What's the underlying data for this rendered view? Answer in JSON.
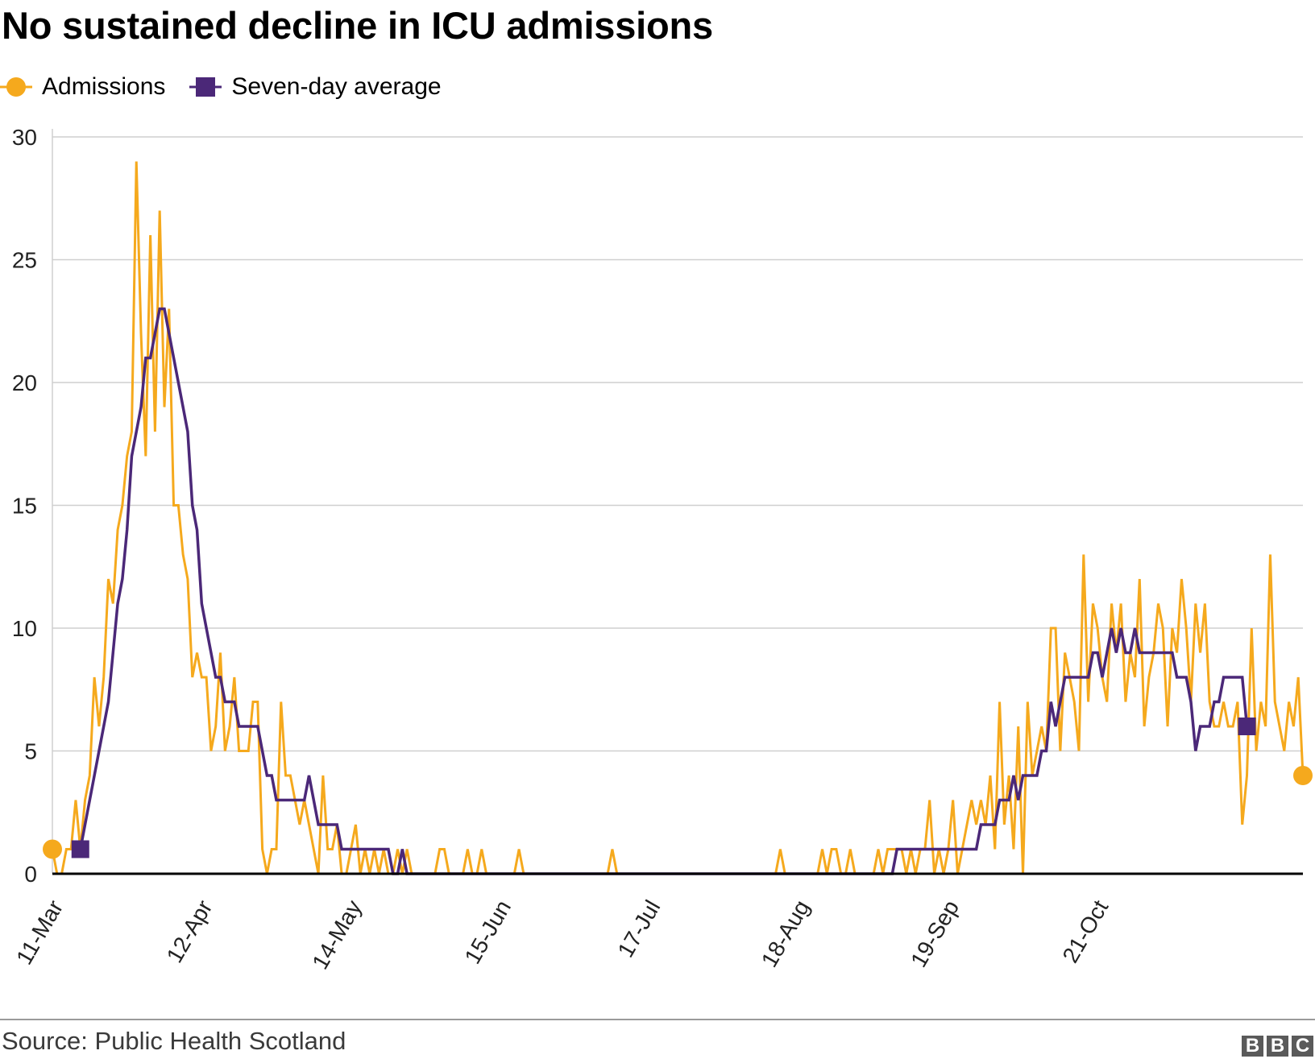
{
  "header": {
    "title": "No sustained decline in ICU admissions"
  },
  "legend": [
    {
      "label": "Admissions",
      "marker": "circle",
      "color": "#f5a91d"
    },
    {
      "label": "Seven-day average",
      "marker": "square",
      "color": "#4b2878"
    }
  ],
  "footer": {
    "source": "Source: Public Health Scotland",
    "logo": [
      "B",
      "B",
      "C"
    ]
  },
  "chart_data": {
    "type": "line",
    "title": "No sustained decline in ICU admissions",
    "xlabel": "",
    "ylabel": "",
    "ylim": [
      0,
      30
    ],
    "yticks": [
      0,
      5,
      10,
      15,
      20,
      25,
      30
    ],
    "start_date": "11-Mar",
    "xtick_labels": [
      "11-Mar",
      "12-Apr",
      "14-May",
      "15-Jun",
      "17-Jul",
      "18-Aug",
      "19-Sep",
      "21-Oct"
    ],
    "xtick_indices": [
      0,
      32,
      64,
      96,
      128,
      160,
      192,
      224
    ],
    "grid": true,
    "legend_position": "top-left",
    "series": [
      {
        "name": "Admissions",
        "color": "#f5a91d",
        "values": [
          1,
          0,
          0,
          1,
          1,
          3,
          1,
          3,
          4,
          8,
          6,
          8,
          12,
          11,
          14,
          15,
          17,
          18,
          29,
          22,
          17,
          26,
          18,
          27,
          19,
          23,
          15,
          15,
          13,
          12,
          8,
          9,
          8,
          8,
          5,
          6,
          9,
          5,
          6,
          8,
          5,
          5,
          5,
          7,
          7,
          1,
          0,
          1,
          1,
          7,
          4,
          4,
          3,
          2,
          3,
          2,
          1,
          0,
          4,
          1,
          1,
          2,
          0,
          0,
          1,
          2,
          0,
          1,
          0,
          1,
          0,
          1,
          0,
          0,
          1,
          0,
          1,
          0,
          0,
          0,
          0,
          0,
          0,
          1,
          1,
          0,
          0,
          0,
          0,
          1,
          0,
          0,
          1,
          0,
          0,
          0,
          0,
          0,
          0,
          0,
          1,
          0,
          0,
          0,
          0,
          0,
          0,
          0,
          0,
          0,
          0,
          0,
          0,
          0,
          0,
          0,
          0,
          0,
          0,
          0,
          1,
          0,
          0,
          0,
          0,
          0,
          0,
          0,
          0,
          0,
          0,
          0,
          0,
          0,
          0,
          0,
          0,
          0,
          0,
          0,
          0,
          0,
          0,
          0,
          0,
          0,
          0,
          0,
          0,
          0,
          0,
          0,
          0,
          0,
          0,
          0,
          1,
          0,
          0,
          0,
          0,
          0,
          0,
          0,
          0,
          1,
          0,
          1,
          1,
          0,
          0,
          1,
          0,
          0,
          0,
          0,
          0,
          1,
          0,
          1,
          1,
          1,
          1,
          0,
          1,
          0,
          1,
          1,
          3,
          0,
          1,
          0,
          1,
          3,
          0,
          1,
          2,
          3,
          2,
          3,
          2,
          4,
          1,
          7,
          2,
          4,
          1,
          6,
          0,
          7,
          4,
          5,
          6,
          5,
          10,
          10,
          5,
          9,
          8,
          7,
          5,
          13,
          7,
          11,
          10,
          8,
          7,
          11,
          9,
          11,
          7,
          9,
          8,
          12,
          6,
          8,
          9,
          11,
          10,
          6,
          10,
          9,
          12,
          10,
          7,
          11,
          9,
          11,
          7,
          6,
          6,
          7,
          6,
          6,
          7,
          2,
          4,
          10,
          5,
          7,
          6,
          13,
          7,
          6,
          5,
          7,
          6,
          8,
          4
        ],
        "endpoint_marker": "circle"
      },
      {
        "name": "Seven-day average",
        "color": "#4b2878",
        "values": [
          null,
          null,
          null,
          null,
          null,
          null,
          1,
          2,
          3,
          4,
          5,
          6,
          7,
          9,
          11,
          12,
          14,
          17,
          18,
          19,
          21,
          21,
          22,
          23,
          23,
          22,
          21,
          20,
          19,
          18,
          15,
          14,
          11,
          10,
          9,
          8,
          8,
          7,
          7,
          7,
          6,
          6,
          6,
          6,
          6,
          5,
          4,
          4,
          3,
          3,
          3,
          3,
          3,
          3,
          3,
          4,
          3,
          2,
          2,
          2,
          2,
          2,
          1,
          1,
          1,
          1,
          1,
          1,
          1,
          1,
          1,
          1,
          1,
          0,
          0,
          1,
          0,
          0,
          0,
          0,
          0,
          0,
          0,
          0,
          0,
          0,
          0,
          0,
          0,
          0,
          0,
          0,
          0,
          0,
          0,
          0,
          0,
          0,
          0,
          0,
          0,
          0,
          0,
          0,
          0,
          0,
          0,
          0,
          0,
          0,
          0,
          0,
          0,
          0,
          0,
          0,
          0,
          0,
          0,
          0,
          0,
          0,
          0,
          0,
          0,
          0,
          0,
          0,
          0,
          0,
          0,
          0,
          0,
          0,
          0,
          0,
          0,
          0,
          0,
          0,
          0,
          0,
          0,
          0,
          0,
          0,
          0,
          0,
          0,
          0,
          0,
          0,
          0,
          0,
          0,
          0,
          0,
          0,
          0,
          0,
          0,
          0,
          0,
          0,
          0,
          0,
          0,
          0,
          0,
          0,
          0,
          0,
          0,
          0,
          0,
          0,
          0,
          0,
          0,
          0,
          0,
          1,
          1,
          1,
          1,
          1,
          1,
          1,
          1,
          1,
          1,
          1,
          1,
          1,
          1,
          1,
          1,
          1,
          1,
          2,
          2,
          2,
          2,
          3,
          3,
          3,
          4,
          3,
          4,
          4,
          4,
          4,
          5,
          5,
          7,
          6,
          7,
          8,
          8,
          8,
          8,
          8,
          8,
          9,
          9,
          8,
          9,
          10,
          9,
          10,
          9,
          9,
          10,
          9,
          9,
          9,
          9,
          9,
          9,
          9,
          9,
          8,
          8,
          8,
          7,
          5,
          6,
          6,
          6,
          7,
          7,
          8,
          8,
          8,
          8,
          8,
          6
        ],
        "endpoint_marker": "square"
      }
    ]
  }
}
